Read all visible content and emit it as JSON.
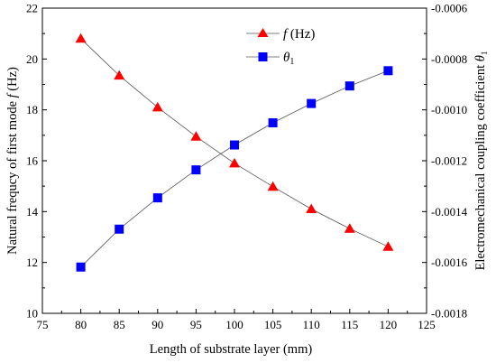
{
  "chart_data": {
    "type": "line",
    "xlabel": "Length of substrate layer  (mm)",
    "ylabel_left": "Natural frequcy of first mode f (Hz)",
    "ylabel_right": "Electromechanical coupling coefficient θ1",
    "xlim": [
      75,
      125
    ],
    "ylim_left": [
      10,
      22
    ],
    "ylim_right": [
      -0.0018,
      -0.0006
    ],
    "xticks": [
      75,
      80,
      85,
      90,
      95,
      100,
      105,
      110,
      115,
      120,
      125
    ],
    "yticks_left": [
      10,
      12,
      14,
      16,
      18,
      20,
      22
    ],
    "yticks_right": [
      -0.0018,
      -0.0016,
      -0.0014,
      -0.0012,
      -0.001,
      -0.0008,
      -0.0006
    ],
    "yticks_left_labels": [
      "10",
      "12",
      "14",
      "16",
      "18",
      "20",
      "22"
    ],
    "yticks_right_labels": [
      "-0.0018",
      "-0.0016",
      "-0.0014",
      "-0.0012",
      "-0.0010",
      "-0.0008",
      "-0.0006"
    ],
    "grid": false,
    "legend_position": "top-right",
    "x": [
      80,
      85,
      90,
      95,
      100,
      105,
      110,
      115,
      120
    ],
    "series": [
      {
        "name": "f (Hz)",
        "axis": "left",
        "marker": "triangle",
        "color": "#ff0000",
        "values": [
          20.8,
          19.35,
          18.1,
          16.95,
          15.9,
          14.98,
          14.1,
          13.33,
          12.62
        ]
      },
      {
        "name": "θ1",
        "axis": "right",
        "marker": "square",
        "color": "#0000ff",
        "values": [
          -0.001618,
          -0.001469,
          -0.001346,
          -0.001236,
          -0.001138,
          -0.001051,
          -0.000975,
          -0.000906,
          -0.000846
        ]
      }
    ]
  }
}
